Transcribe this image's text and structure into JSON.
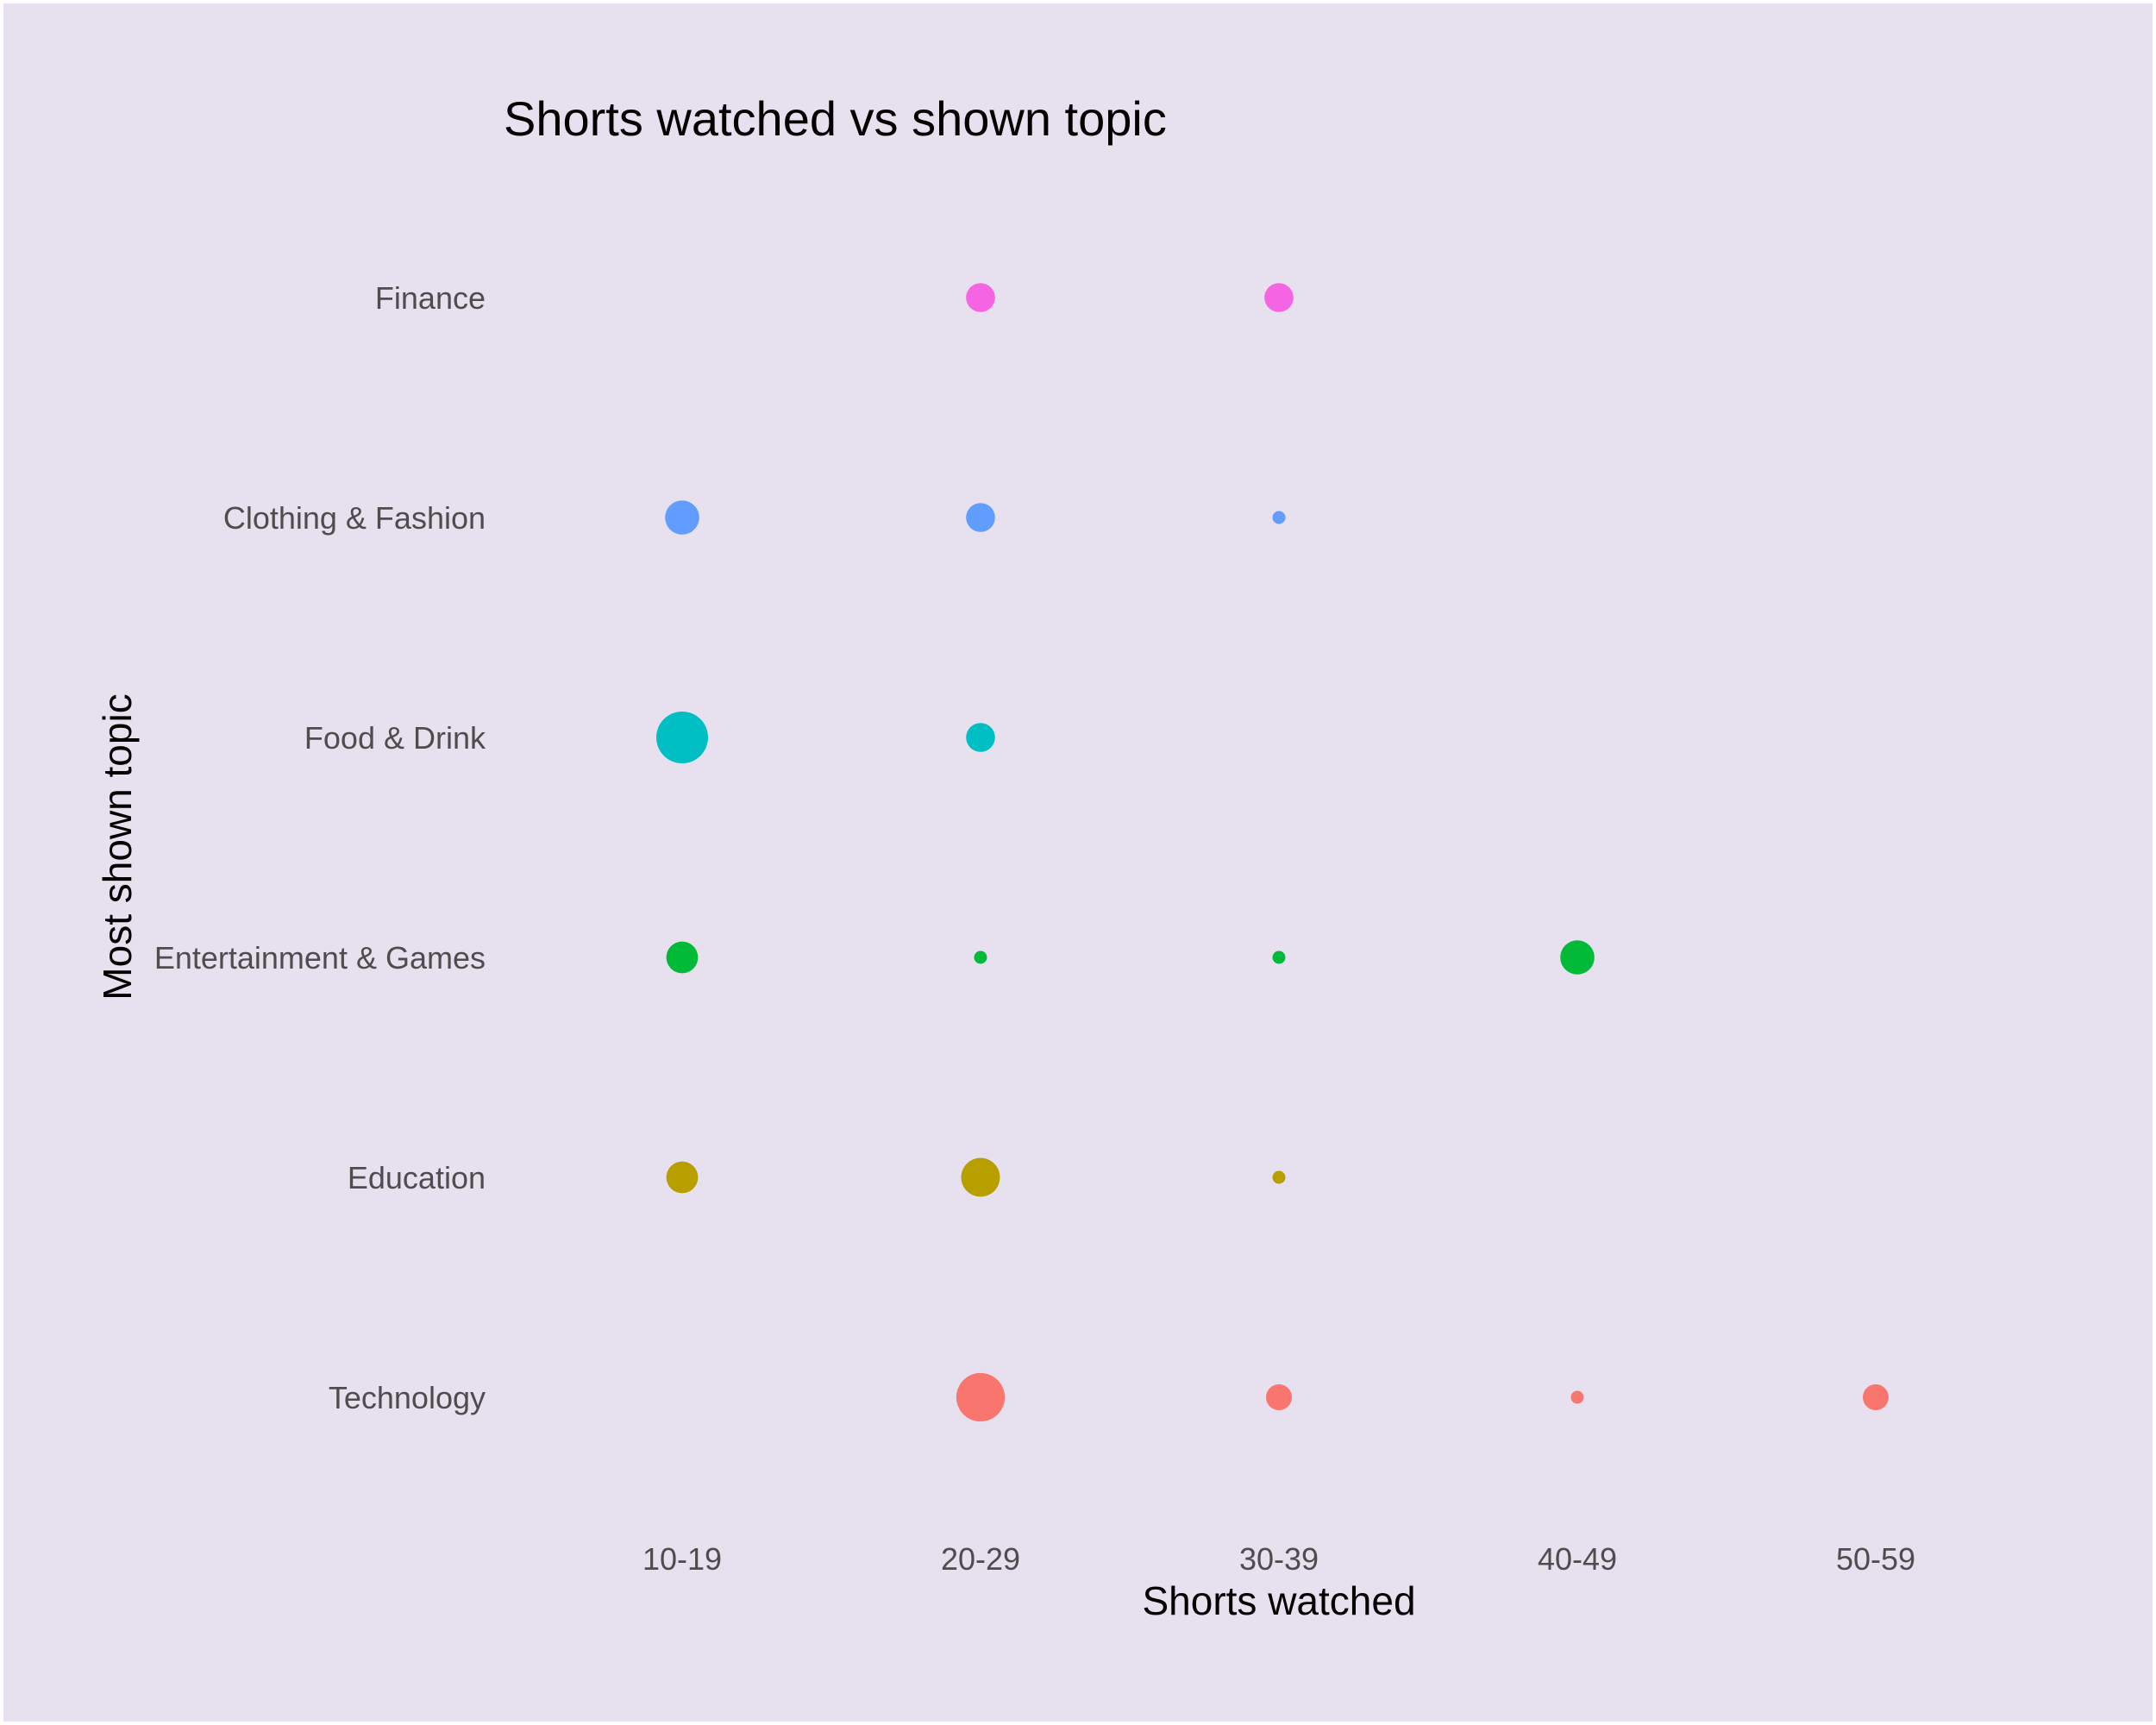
{
  "chart_data": {
    "type": "scatter",
    "title": "Shorts watched vs shown topic",
    "xlabel": "Shorts watched",
    "ylabel": "Most shown topic",
    "x_categories": [
      "10-19",
      "20-29",
      "30-39",
      "40-49",
      "50-59"
    ],
    "y_categories": [
      "Technology",
      "Education",
      "Entertainment & Games",
      "Food & Drink",
      "Clothing & Fashion",
      "Finance"
    ],
    "background_color": "#e7e1ef",
    "grid": false,
    "legend": "none",
    "size_encoding": "count",
    "series": [
      {
        "category": "Technology",
        "color": "#f8766d",
        "points": [
          {
            "x": "20-29",
            "size": 7
          },
          {
            "x": "30-39",
            "size": 2
          },
          {
            "x": "40-49",
            "size": 0.5
          },
          {
            "x": "50-59",
            "size": 2
          }
        ]
      },
      {
        "category": "Education",
        "color": "#b79f00",
        "points": [
          {
            "x": "10-19",
            "size": 3
          },
          {
            "x": "20-29",
            "size": 4.5
          },
          {
            "x": "30-39",
            "size": 0.5
          }
        ]
      },
      {
        "category": "Entertainment & Games",
        "color": "#00ba38",
        "points": [
          {
            "x": "10-19",
            "size": 3
          },
          {
            "x": "20-29",
            "size": 0.5
          },
          {
            "x": "30-39",
            "size": 0.5
          },
          {
            "x": "40-49",
            "size": 3.5
          }
        ]
      },
      {
        "category": "Food & Drink",
        "color": "#00bfc4",
        "points": [
          {
            "x": "10-19",
            "size": 8
          },
          {
            "x": "20-29",
            "size": 2.5
          }
        ]
      },
      {
        "category": "Clothing & Fashion",
        "color": "#619cff",
        "points": [
          {
            "x": "10-19",
            "size": 3.5
          },
          {
            "x": "20-29",
            "size": 2.5
          },
          {
            "x": "30-39",
            "size": 0.5
          }
        ]
      },
      {
        "category": "Finance",
        "color": "#f564e3",
        "points": [
          {
            "x": "20-29",
            "size": 2.5
          },
          {
            "x": "30-39",
            "size": 2.5
          }
        ]
      }
    ]
  }
}
